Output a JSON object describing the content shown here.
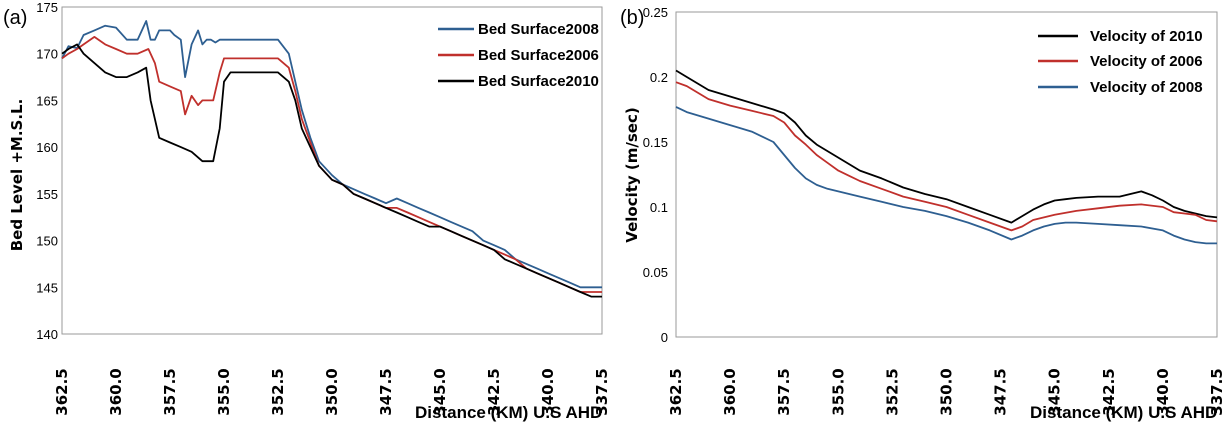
{
  "chart_data": [
    {
      "panel_label": "(a)",
      "type": "line",
      "ylabel": "Bed Level +M.S.L.",
      "xlabel": "Distance (KM) U.S AHD",
      "xlim": [
        362.5,
        337.5
      ],
      "ylim": [
        140,
        175
      ],
      "xticks": [
        "362.5",
        "360.0",
        "357.5",
        "355.0",
        "352.5",
        "350.0",
        "347.5",
        "345.0",
        "342.5",
        "340.0",
        "337.5"
      ],
      "yticks": [
        "140",
        "145",
        "150",
        "155",
        "160",
        "165",
        "170",
        "175"
      ],
      "legend_position": "top-right",
      "series": [
        {
          "name": "Bed Surface2008",
          "color": "#2e5f91",
          "x": [
            362.5,
            362.2,
            361.8,
            361.5,
            361.0,
            360.5,
            360.0,
            359.5,
            359.0,
            358.6,
            358.4,
            358.2,
            358.0,
            357.5,
            357.3,
            357.0,
            356.8,
            356.5,
            356.2,
            356.0,
            355.8,
            355.6,
            355.4,
            355.2,
            355.0,
            354.5,
            354.0,
            353.5,
            353.0,
            352.5,
            352.0,
            351.7,
            351.4,
            351.0,
            350.6,
            350.0,
            349.5,
            349.0,
            348.5,
            348.0,
            347.5,
            347.0,
            346.5,
            346.0,
            345.5,
            345.0,
            344.5,
            344.0,
            343.5,
            343.0,
            342.5,
            342.0,
            341.5,
            341.0,
            340.5,
            340.0,
            339.5,
            339.0,
            338.5,
            338.0,
            337.5
          ],
          "y": [
            169.5,
            170.8,
            170.6,
            172.0,
            172.5,
            173.0,
            172.8,
            171.5,
            171.5,
            173.5,
            171.5,
            171.5,
            172.5,
            172.5,
            172.0,
            171.5,
            167.5,
            171.0,
            172.5,
            171.0,
            171.5,
            171.5,
            171.2,
            171.5,
            171.5,
            171.5,
            171.5,
            171.5,
            171.5,
            171.5,
            170.0,
            167.0,
            164.0,
            161.0,
            158.5,
            157.0,
            156.0,
            155.5,
            155.0,
            154.5,
            154.0,
            154.5,
            154.0,
            153.5,
            153.0,
            152.5,
            152.0,
            151.5,
            151.0,
            150.0,
            149.5,
            149.0,
            148.0,
            147.5,
            147.0,
            146.5,
            146.0,
            145.5,
            145.0,
            145.0,
            145.0
          ]
        },
        {
          "name": "Bed Surface2006",
          "color": "#c0302c",
          "x": [
            362.5,
            362.2,
            361.8,
            361.5,
            361.0,
            360.5,
            360.0,
            359.5,
            359.0,
            358.5,
            358.2,
            358.0,
            357.5,
            357.0,
            356.8,
            356.5,
            356.2,
            356.0,
            355.5,
            355.2,
            355.0,
            354.7,
            354.5,
            354.0,
            353.5,
            353.0,
            352.5,
            352.0,
            351.7,
            351.4,
            351.0,
            350.6,
            350.0,
            349.5,
            349.0,
            348.5,
            348.0,
            347.5,
            347.0,
            346.5,
            346.0,
            345.5,
            345.0,
            344.5,
            344.0,
            343.5,
            343.0,
            342.5,
            342.0,
            341.5,
            341.0,
            340.5,
            340.0,
            339.5,
            339.0,
            338.5,
            338.0,
            337.5
          ],
          "y": [
            169.5,
            170.0,
            170.5,
            171.0,
            171.8,
            171.0,
            170.5,
            170.0,
            170.0,
            170.5,
            169.0,
            167.0,
            166.5,
            166.0,
            163.5,
            165.5,
            164.5,
            165.0,
            165.0,
            168.0,
            169.5,
            169.5,
            169.5,
            169.5,
            169.5,
            169.5,
            169.5,
            168.5,
            166.0,
            163.0,
            160.5,
            158.0,
            156.5,
            156.0,
            155.0,
            154.5,
            154.0,
            153.5,
            153.5,
            153.0,
            152.5,
            152.0,
            151.5,
            151.0,
            150.5,
            150.0,
            149.5,
            149.0,
            148.5,
            148.0,
            147.0,
            146.5,
            146.0,
            145.5,
            145.0,
            144.5,
            144.5,
            144.5
          ]
        },
        {
          "name": "Bed Surface2010",
          "color": "#000000",
          "x": [
            362.5,
            362.2,
            361.8,
            361.5,
            361.0,
            360.5,
            360.0,
            359.5,
            359.0,
            358.6,
            358.4,
            358.2,
            358.0,
            357.5,
            357.0,
            356.5,
            356.0,
            355.5,
            355.2,
            355.0,
            354.7,
            354.5,
            354.0,
            353.5,
            353.0,
            352.5,
            352.0,
            351.7,
            351.4,
            351.0,
            350.6,
            350.0,
            349.5,
            349.0,
            348.5,
            348.0,
            347.5,
            347.0,
            346.5,
            346.0,
            345.5,
            345.0,
            344.5,
            344.0,
            343.5,
            343.0,
            342.5,
            342.0,
            341.5,
            341.0,
            340.5,
            340.0,
            339.5,
            339.0,
            338.5,
            338.0,
            337.5
          ],
          "y": [
            170.0,
            170.5,
            171.0,
            170.0,
            169.0,
            168.0,
            167.5,
            167.5,
            168.0,
            168.5,
            165.0,
            163.0,
            161.0,
            160.5,
            160.0,
            159.5,
            158.5,
            158.5,
            162.0,
            167.0,
            168.0,
            168.0,
            168.0,
            168.0,
            168.0,
            168.0,
            167.0,
            165.0,
            162.0,
            160.0,
            158.0,
            156.5,
            156.0,
            155.0,
            154.5,
            154.0,
            153.5,
            153.0,
            152.5,
            152.0,
            151.5,
            151.5,
            151.0,
            150.5,
            150.0,
            149.5,
            149.0,
            148.0,
            147.5,
            147.0,
            146.5,
            146.0,
            145.5,
            145.0,
            144.5,
            144.0,
            144.0
          ]
        }
      ]
    },
    {
      "panel_label": "(b)",
      "type": "line",
      "ylabel": "Velocity (m/sec)",
      "xlabel": "Distance (KM) U.S AHD",
      "xlim": [
        362.5,
        337.5
      ],
      "ylim": [
        0,
        0.25
      ],
      "xticks": [
        "362.5",
        "360.0",
        "357.5",
        "355.0",
        "352.5",
        "350.0",
        "347.5",
        "345.0",
        "342.5",
        "340.0",
        "337.5"
      ],
      "yticks": [
        "0",
        "0.05",
        "0.1",
        "0.15",
        "0.2",
        "0.25"
      ],
      "legend_position": "top-right",
      "series": [
        {
          "name": "Velocity of 2010",
          "color": "#000000",
          "x": [
            362.5,
            362.0,
            361.0,
            360.0,
            359.0,
            358.0,
            357.5,
            357.0,
            356.5,
            356.0,
            355.5,
            355.0,
            354.5,
            354.0,
            353.0,
            352.0,
            351.0,
            350.5,
            350.0,
            349.0,
            348.0,
            347.0,
            346.5,
            346.0,
            345.5,
            345.0,
            344.5,
            344.0,
            343.0,
            342.0,
            341.5,
            341.0,
            340.5,
            340.0,
            339.5,
            339.0,
            338.5,
            338.0,
            337.5
          ],
          "y": [
            0.205,
            0.2,
            0.19,
            0.185,
            0.18,
            0.175,
            0.172,
            0.165,
            0.155,
            0.148,
            0.143,
            0.138,
            0.133,
            0.128,
            0.122,
            0.115,
            0.11,
            0.108,
            0.106,
            0.1,
            0.094,
            0.088,
            0.093,
            0.098,
            0.102,
            0.105,
            0.106,
            0.107,
            0.108,
            0.108,
            0.11,
            0.112,
            0.109,
            0.105,
            0.1,
            0.097,
            0.095,
            0.093,
            0.092
          ]
        },
        {
          "name": "Velocity of 2006",
          "color": "#c0302c",
          "x": [
            362.5,
            362.0,
            361.0,
            360.0,
            359.0,
            358.0,
            357.5,
            357.0,
            356.5,
            356.0,
            355.5,
            355.0,
            354.5,
            354.0,
            353.0,
            352.0,
            351.0,
            350.0,
            349.0,
            348.0,
            347.0,
            346.5,
            346.0,
            345.5,
            345.0,
            344.0,
            343.0,
            342.0,
            341.0,
            340.0,
            339.5,
            339.0,
            338.5,
            338.0,
            337.5
          ],
          "y": [
            0.196,
            0.193,
            0.183,
            0.178,
            0.174,
            0.17,
            0.165,
            0.155,
            0.148,
            0.14,
            0.134,
            0.128,
            0.124,
            0.12,
            0.114,
            0.108,
            0.104,
            0.1,
            0.094,
            0.088,
            0.082,
            0.085,
            0.09,
            0.092,
            0.094,
            0.097,
            0.099,
            0.101,
            0.102,
            0.1,
            0.096,
            0.095,
            0.094,
            0.09,
            0.089
          ]
        },
        {
          "name": "Velocity of 2008",
          "color": "#2e5f91",
          "x": [
            362.5,
            362.0,
            361.0,
            360.0,
            359.0,
            358.0,
            357.5,
            357.0,
            356.5,
            356.0,
            355.5,
            355.0,
            354.5,
            354.0,
            353.0,
            352.0,
            351.0,
            350.0,
            349.0,
            348.0,
            347.0,
            346.5,
            346.0,
            345.5,
            345.0,
            344.5,
            344.0,
            343.0,
            342.0,
            341.0,
            340.0,
            339.5,
            339.0,
            338.5,
            338.0,
            337.5
          ],
          "y": [
            0.177,
            0.173,
            0.168,
            0.163,
            0.158,
            0.15,
            0.14,
            0.13,
            0.122,
            0.117,
            0.114,
            0.112,
            0.11,
            0.108,
            0.104,
            0.1,
            0.097,
            0.093,
            0.088,
            0.082,
            0.075,
            0.078,
            0.082,
            0.085,
            0.087,
            0.088,
            0.088,
            0.087,
            0.086,
            0.085,
            0.082,
            0.078,
            0.075,
            0.073,
            0.072,
            0.072
          ]
        }
      ]
    }
  ]
}
